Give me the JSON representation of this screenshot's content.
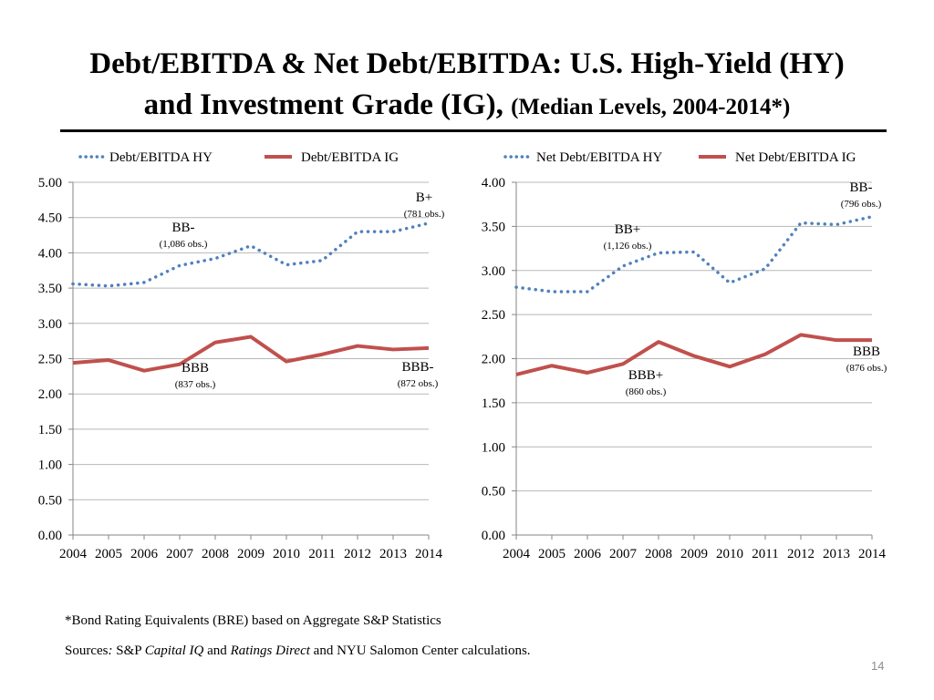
{
  "slide": {
    "title_line1": "Debt/EBITDA &  Net Debt/EBITDA: U.S. High-Yield (HY)",
    "title_line2_main": "and Investment Grade (IG),",
    "title_line2_sub": "(Median Levels, 2004-2014*)",
    "footnote": "*Bond Rating Equivalents (BRE) based on Aggregate S&P Statistics",
    "sources_prefix": "Sources",
    "sources_colon": ":",
    "sources_sp": " S&P ",
    "sources_capiq": "Capital IQ",
    "sources_and": " and ",
    "sources_rd": "Ratings Direct",
    "sources_suffix": " and NYU Salomon Center calculations.",
    "page_number": "14"
  },
  "chart_data": [
    {
      "type": "line",
      "title": "",
      "categories": [
        "2004",
        "2005",
        "2006",
        "2007",
        "2008",
        "2009",
        "2010",
        "2011",
        "2012",
        "2013",
        "2014"
      ],
      "ylim": [
        0,
        5
      ],
      "yticks": [
        "0.00",
        "0.50",
        "1.00",
        "1.50",
        "2.00",
        "2.50",
        "3.00",
        "3.50",
        "4.00",
        "4.50",
        "5.00"
      ],
      "grid": true,
      "legend_position": "top",
      "series": [
        {
          "name": "Debt/EBITDA HY",
          "style": "dotted",
          "color": "#4f81bd",
          "values": [
            3.56,
            3.53,
            3.58,
            3.82,
            3.92,
            4.1,
            3.83,
            3.89,
            4.3,
            4.3,
            4.42
          ]
        },
        {
          "name": "Debt/EBITDA IG",
          "style": "solid",
          "color": "#c0504d",
          "values": [
            2.44,
            2.48,
            2.33,
            2.42,
            2.73,
            2.81,
            2.46,
            2.56,
            2.68,
            2.63,
            2.65
          ]
        }
      ],
      "annotations": [
        {
          "id": "bbminus",
          "x": "2005",
          "rating": "BB-",
          "obs": "(1,086 obs.)"
        },
        {
          "id": "bplus",
          "x": "2014",
          "rating": "B+",
          "obs": "(781 obs.)"
        },
        {
          "id": "bbb",
          "x": "2007",
          "rating": "BBB",
          "obs": "(837 obs.)"
        },
        {
          "id": "bbbminus",
          "x": "2014",
          "rating": "BBB-",
          "obs": "(872 obs.)"
        }
      ]
    },
    {
      "type": "line",
      "title": "",
      "categories": [
        "2004",
        "2005",
        "2006",
        "2007",
        "2008",
        "2009",
        "2010",
        "2011",
        "2012",
        "2013",
        "2014"
      ],
      "ylim": [
        0,
        4
      ],
      "yticks": [
        "0.00",
        "0.50",
        "1.00",
        "1.50",
        "2.00",
        "2.50",
        "3.00",
        "3.50",
        "4.00"
      ],
      "grid": true,
      "legend_position": "top",
      "series": [
        {
          "name": "Net Debt/EBITDA HY",
          "style": "dotted",
          "color": "#4f81bd",
          "values": [
            2.81,
            2.76,
            2.76,
            3.05,
            3.2,
            3.21,
            2.86,
            3.02,
            3.54,
            3.52,
            3.61
          ]
        },
        {
          "name": "Net Debt/EBITDA IG",
          "style": "solid",
          "color": "#c0504d",
          "values": [
            1.82,
            1.92,
            1.84,
            1.94,
            2.19,
            2.03,
            1.91,
            2.05,
            2.27,
            2.21,
            2.21
          ]
        }
      ],
      "annotations": [
        {
          "id": "bbplus",
          "x": "2008",
          "rating": "BB+",
          "obs": "(1,126 obs.)"
        },
        {
          "id": "bbminus2",
          "x": "2014",
          "rating": "BB-",
          "obs": "(796 obs.)"
        },
        {
          "id": "bbbplus",
          "x": "2008",
          "rating": "BBB+",
          "obs": "(860 obs.)"
        },
        {
          "id": "bbb2",
          "x": "2014",
          "rating": "BBB",
          "obs": "(876 obs.)"
        }
      ]
    }
  ]
}
